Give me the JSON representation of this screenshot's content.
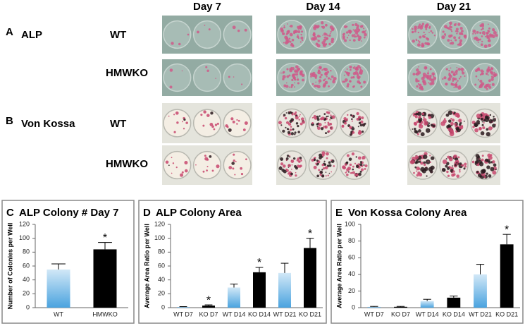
{
  "figure": {
    "columns": [
      "Day 7",
      "Day 14",
      "Day 21"
    ],
    "rows": [
      {
        "panel": "A",
        "stain": "ALP",
        "genotype": "WT"
      },
      {
        "genotype": "HMWKO"
      },
      {
        "panel": "B",
        "stain": "Von Kossa",
        "genotype": "WT"
      },
      {
        "genotype": "HMWKO"
      }
    ]
  },
  "chart_data": [
    {
      "type": "bar",
      "panel": "C",
      "title": "ALP Colony # Day 7",
      "ylabel": "Number of Colonies per Well",
      "categories": [
        "WT",
        "HMWKO"
      ],
      "values": [
        55,
        84
      ],
      "errors": [
        8,
        10
      ],
      "markers": [
        null,
        "*"
      ],
      "colors": [
        "#4aa3df",
        "#000000"
      ],
      "ylim": [
        0,
        120
      ],
      "yticks": [
        0,
        20,
        40,
        60,
        80,
        100,
        120
      ]
    },
    {
      "type": "bar",
      "panel": "D",
      "title": "ALP Colony Area",
      "ylabel": "Average Area Ratio per Well",
      "categories": [
        "WT D7",
        "KO D7",
        "WT D14",
        "KO D14",
        "WT D21",
        "KO D21"
      ],
      "values": [
        1,
        3,
        29,
        51,
        50,
        86
      ],
      "errors": [
        0.5,
        1,
        5,
        7,
        14,
        14
      ],
      "markers": [
        null,
        "*",
        null,
        "*",
        null,
        "*"
      ],
      "colors": [
        "#4aa3df",
        "#000000",
        "#4aa3df",
        "#000000",
        "#4aa3df",
        "#000000"
      ],
      "ylim": [
        0,
        120
      ],
      "yticks": [
        0,
        20,
        40,
        60,
        80,
        100,
        120
      ]
    },
    {
      "type": "bar",
      "panel": "E",
      "title": "Von Kossa Colony Area",
      "ylabel": "Average Area Ratio per Well",
      "categories": [
        "WT D7",
        "KO D7",
        "WT D14",
        "KO D14",
        "WT D21",
        "KO D21"
      ],
      "values": [
        1,
        1,
        8,
        12,
        40,
        76
      ],
      "errors": [
        0.5,
        0.5,
        2,
        2,
        12,
        12
      ],
      "markers": [
        null,
        null,
        null,
        null,
        null,
        "*"
      ],
      "colors": [
        "#4aa3df",
        "#000000",
        "#4aa3df",
        "#000000",
        "#4aa3df",
        "#000000"
      ],
      "ylim": [
        0,
        100
      ],
      "yticks": [
        0,
        20,
        40,
        60,
        80,
        100
      ]
    }
  ]
}
